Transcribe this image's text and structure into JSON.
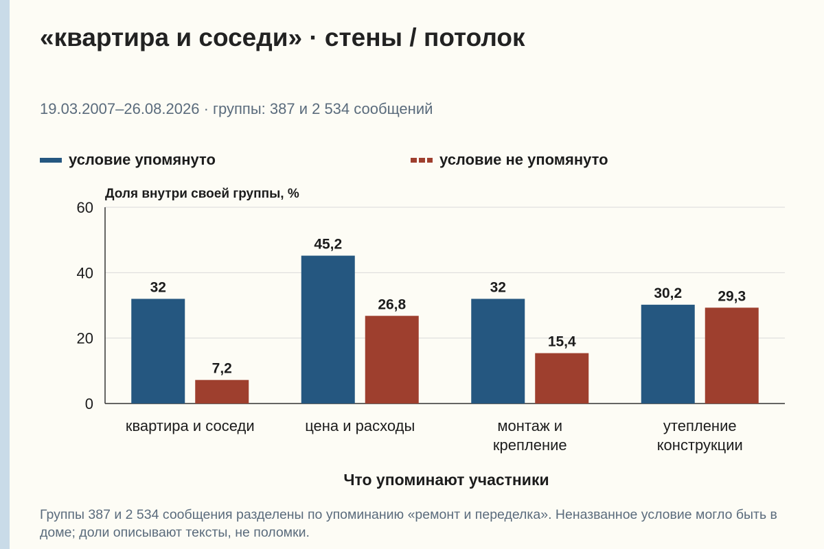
{
  "title": "«квартира и соседи» · стены / потолок",
  "subtitle": "19.03.2007–26.08.2026 · группы: 387 и 2 534 сообщений",
  "note": "Группы 387 и 2 534 сообщения разделены по упоминанию «ремонт и переделка». Неназванное условие могло быть в доме; доли описывают тексты, не поломки.",
  "colors": {
    "series1": "#255780",
    "series2": "#9e3f2e",
    "grid": "#d9d9d9",
    "axis": "#333333"
  },
  "chart_data": {
    "type": "bar",
    "title": "«квартира и соседи» · стены / потолок",
    "ylabel": "Доля внутри своей группы, %",
    "xlabel": "Что упоминают участники",
    "categories": [
      "квартира и соседи",
      "цена и расходы",
      "монтаж и крепление",
      "утепление конструкции"
    ],
    "category_lines": [
      [
        "квартира и соседи"
      ],
      [
        "цена и расходы"
      ],
      [
        "монтаж и",
        "крепление"
      ],
      [
        "утепление",
        "конструкции"
      ]
    ],
    "series": [
      {
        "name": "условие упомянуто",
        "values": [
          32,
          45.2,
          32,
          30.2
        ],
        "labels": [
          "32",
          "45,2",
          "32",
          "30,2"
        ],
        "style": "solid"
      },
      {
        "name": "условие не упомянуто",
        "values": [
          7.2,
          26.8,
          15.4,
          29.3
        ],
        "labels": [
          "7,2",
          "26,8",
          "15,4",
          "29,3"
        ],
        "style": "dashed"
      }
    ],
    "ylim": [
      0,
      60
    ],
    "yticks": [
      0,
      20,
      40,
      60
    ],
    "grid": true,
    "legend": "top"
  }
}
